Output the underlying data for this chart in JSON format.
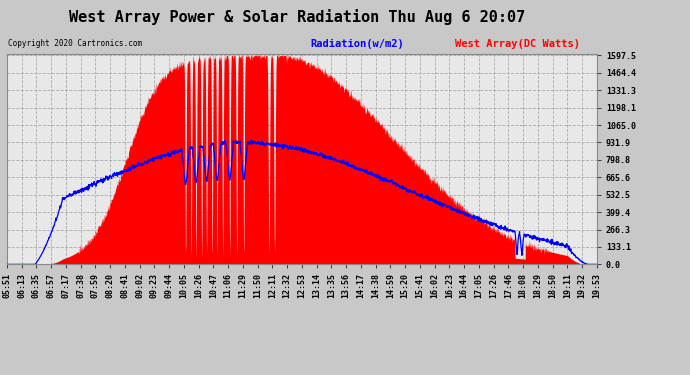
{
  "title": "West Array Power & Solar Radiation Thu Aug 6 20:07",
  "copyright": "Copyright 2020 Cartronics.com",
  "legend_radiation": "Radiation(w/m2)",
  "legend_west": "West Array(DC Watts)",
  "legend_radiation_color": "blue",
  "legend_west_color": "red",
  "yticks": [
    0.0,
    133.1,
    266.3,
    399.4,
    532.5,
    665.6,
    798.8,
    931.9,
    1065.0,
    1198.1,
    1331.3,
    1464.4,
    1597.5
  ],
  "ymax": 1597.5,
  "ymin": 0.0,
  "bg_color": "#c8c8c8",
  "plot_bg_color": "#e8e8e8",
  "grid_color": "#aaaaaa",
  "title_fontsize": 11,
  "tick_fontsize": 6,
  "x_labels": [
    "05:51",
    "06:13",
    "06:35",
    "06:57",
    "07:17",
    "07:38",
    "07:59",
    "08:20",
    "08:41",
    "09:02",
    "09:23",
    "09:44",
    "10:05",
    "10:26",
    "10:47",
    "11:06",
    "11:29",
    "11:50",
    "12:11",
    "12:32",
    "12:53",
    "13:14",
    "13:35",
    "13:56",
    "14:17",
    "14:38",
    "14:59",
    "15:20",
    "15:41",
    "16:02",
    "16:23",
    "16:44",
    "17:05",
    "17:26",
    "17:46",
    "18:08",
    "18:29",
    "18:50",
    "19:11",
    "19:32",
    "19:53"
  ]
}
